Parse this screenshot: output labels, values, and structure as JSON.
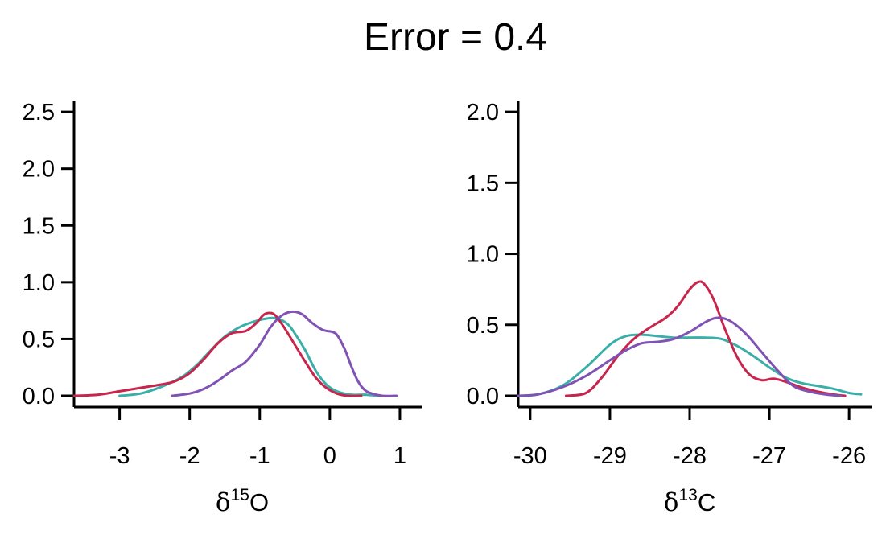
{
  "title": "Error = 0.4",
  "colors": {
    "teal": "#3aafa9",
    "crimson": "#c8254d",
    "purple": "#8052b3"
  },
  "chart_data": [
    {
      "type": "line",
      "xlabel_symbol": "δ",
      "xlabel_sup": "15",
      "xlabel_text": "O",
      "xlim": [
        -3.65,
        1.15
      ],
      "ylim": [
        0,
        2.6
      ],
      "xticks": [
        -3,
        -2,
        -1,
        0,
        1
      ],
      "xtick_labels": [
        "-3",
        "-2",
        "-1",
        "0",
        "1"
      ],
      "yticks": [
        0,
        0.5,
        1,
        1.5,
        2,
        2.5
      ],
      "ytick_labels": [
        "0.0",
        "0.5",
        "1.0",
        "1.5",
        "2.0",
        "2.5"
      ],
      "grid": false,
      "series": [
        {
          "color": "teal",
          "x": [
            -3.0,
            -2.7,
            -2.4,
            -2.1,
            -1.9,
            -1.7,
            -1.5,
            -1.3,
            -1.1,
            -0.9,
            -0.75,
            -0.6,
            -0.5,
            -0.35,
            -0.2,
            -0.05,
            0.1,
            0.3,
            0.5,
            0.7
          ],
          "y": [
            0.0,
            0.02,
            0.08,
            0.17,
            0.27,
            0.4,
            0.52,
            0.6,
            0.65,
            0.68,
            0.68,
            0.63,
            0.55,
            0.4,
            0.22,
            0.1,
            0.04,
            0.01,
            0.01,
            0.0
          ]
        },
        {
          "color": "crimson",
          "x": [
            -3.65,
            -3.3,
            -3.0,
            -2.7,
            -2.4,
            -2.2,
            -2.0,
            -1.8,
            -1.6,
            -1.4,
            -1.2,
            -1.05,
            -0.95,
            -0.87,
            -0.78,
            -0.65,
            -0.5,
            -0.35,
            -0.2,
            -0.05,
            0.1,
            0.25,
            0.45
          ],
          "y": [
            0.0,
            0.01,
            0.04,
            0.07,
            0.1,
            0.13,
            0.2,
            0.32,
            0.46,
            0.55,
            0.57,
            0.64,
            0.71,
            0.73,
            0.71,
            0.6,
            0.45,
            0.3,
            0.16,
            0.07,
            0.02,
            0.0,
            0.0
          ]
        },
        {
          "color": "purple",
          "x": [
            -2.25,
            -2.0,
            -1.8,
            -1.6,
            -1.4,
            -1.2,
            -1.0,
            -0.85,
            -0.7,
            -0.55,
            -0.4,
            -0.25,
            -0.1,
            0.05,
            0.12,
            0.22,
            0.3,
            0.4,
            0.5,
            0.6,
            0.75,
            0.95
          ],
          "y": [
            0.0,
            0.02,
            0.06,
            0.13,
            0.22,
            0.3,
            0.45,
            0.6,
            0.7,
            0.74,
            0.72,
            0.64,
            0.58,
            0.56,
            0.52,
            0.4,
            0.27,
            0.13,
            0.05,
            0.02,
            0.0,
            0.0
          ]
        }
      ]
    },
    {
      "type": "line",
      "xlabel_symbol": "δ",
      "xlabel_sup": "13",
      "xlabel_text": "C",
      "xlim": [
        -30.15,
        -25.85
      ],
      "ylim": [
        0,
        2.08
      ],
      "xticks": [
        -30,
        -29,
        -28,
        -27,
        -26
      ],
      "xtick_labels": [
        "-30",
        "-29",
        "-28",
        "-27",
        "-26"
      ],
      "yticks": [
        0,
        0.5,
        1,
        1.5,
        2
      ],
      "ytick_labels": [
        "0.0",
        "0.5",
        "1.0",
        "1.5",
        "2.0"
      ],
      "grid": false,
      "series": [
        {
          "color": "teal",
          "x": [
            -30.15,
            -29.9,
            -29.6,
            -29.3,
            -29.0,
            -28.8,
            -28.6,
            -28.4,
            -28.2,
            -28.0,
            -27.8,
            -27.6,
            -27.4,
            -27.2,
            -27.0,
            -26.8,
            -26.6,
            -26.4,
            -26.2,
            -26.0,
            -25.85
          ],
          "y": [
            0.0,
            0.01,
            0.07,
            0.2,
            0.36,
            0.42,
            0.43,
            0.42,
            0.41,
            0.41,
            0.41,
            0.4,
            0.35,
            0.28,
            0.2,
            0.13,
            0.09,
            0.07,
            0.05,
            0.02,
            0.01
          ]
        },
        {
          "color": "crimson",
          "x": [
            -29.55,
            -29.3,
            -29.1,
            -28.9,
            -28.7,
            -28.5,
            -28.3,
            -28.15,
            -28.0,
            -27.9,
            -27.82,
            -27.7,
            -27.55,
            -27.4,
            -27.25,
            -27.1,
            -26.95,
            -26.8,
            -26.6,
            -26.4,
            -26.2,
            -26.05
          ],
          "y": [
            0.0,
            0.02,
            0.13,
            0.28,
            0.4,
            0.48,
            0.55,
            0.63,
            0.75,
            0.8,
            0.79,
            0.68,
            0.46,
            0.27,
            0.15,
            0.11,
            0.12,
            0.1,
            0.06,
            0.03,
            0.01,
            0.0
          ]
        },
        {
          "color": "purple",
          "x": [
            -30.15,
            -29.9,
            -29.6,
            -29.3,
            -29.0,
            -28.8,
            -28.6,
            -28.4,
            -28.2,
            -28.0,
            -27.8,
            -27.65,
            -27.5,
            -27.3,
            -27.1,
            -26.9,
            -26.7,
            -26.5,
            -26.3,
            -26.1
          ],
          "y": [
            0.0,
            0.01,
            0.06,
            0.14,
            0.25,
            0.32,
            0.37,
            0.38,
            0.4,
            0.45,
            0.52,
            0.55,
            0.53,
            0.44,
            0.31,
            0.18,
            0.07,
            0.03,
            0.01,
            0.0
          ]
        }
      ]
    }
  ]
}
